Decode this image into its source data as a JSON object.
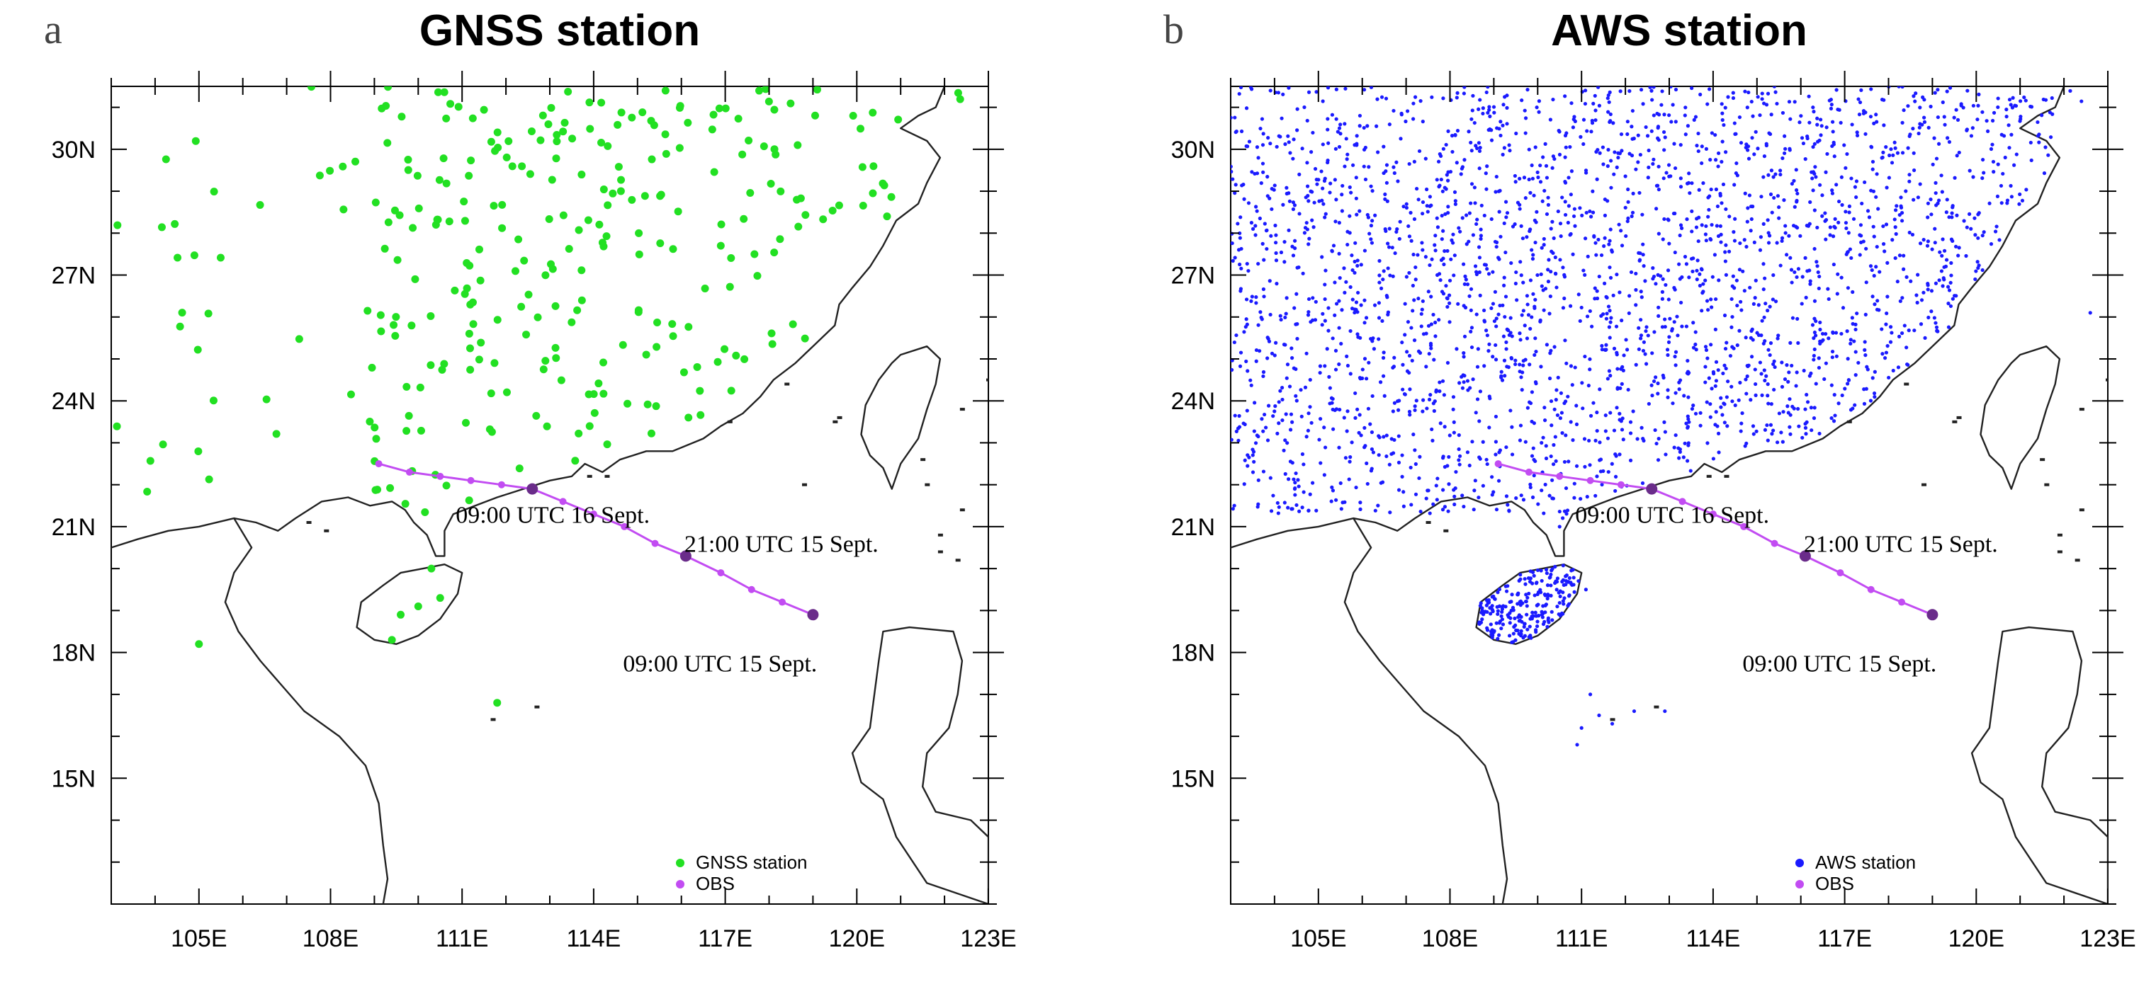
{
  "panels": [
    {
      "letter": "a",
      "title": "GNSS station",
      "station_color": "#22e022",
      "station_kind": "GNSS",
      "legend": {
        "station_label": "GNSS station",
        "obs_label": "OBS",
        "position": "bottom-right"
      }
    },
    {
      "letter": "b",
      "title": "AWS station",
      "station_color": "#1a1aff",
      "station_kind": "AWS",
      "legend": {
        "station_label": "AWS station",
        "obs_label": "OBS",
        "position": "bottom-right"
      }
    }
  ],
  "axes": {
    "lon_range": [
      103,
      123
    ],
    "lat_range": [
      12,
      31.5
    ],
    "x_ticks": [
      "105E",
      "108E",
      "111E",
      "114E",
      "117E",
      "120E",
      "123E"
    ],
    "x_tick_values": [
      105,
      108,
      111,
      114,
      117,
      120,
      123
    ],
    "y_ticks": [
      "15N",
      "18N",
      "21N",
      "24N",
      "27N",
      "30N"
    ],
    "y_tick_values": [
      15,
      18,
      21,
      24,
      27,
      30
    ]
  },
  "colors": {
    "obs_track": "#c24cf2",
    "obs_key_point": "#6a2c8a",
    "coastline": "#222222"
  },
  "track": {
    "points": [
      [
        119.0,
        18.9
      ],
      [
        118.3,
        19.2
      ],
      [
        117.6,
        19.5
      ],
      [
        116.9,
        19.9
      ],
      [
        116.1,
        20.3
      ],
      [
        115.4,
        20.6
      ],
      [
        114.7,
        21.0
      ],
      [
        114.0,
        21.3
      ],
      [
        113.3,
        21.6
      ],
      [
        112.6,
        21.9
      ],
      [
        111.9,
        22.0
      ],
      [
        111.2,
        22.1
      ],
      [
        110.5,
        22.2
      ],
      [
        109.8,
        22.3
      ],
      [
        109.1,
        22.5
      ]
    ],
    "key_points": [
      {
        "lon": 119.0,
        "lat": 18.9,
        "label": "09:00 UTC 15 Sept."
      },
      {
        "lon": 116.1,
        "lat": 20.3,
        "label": "21:00 UTC 15 Sept."
      },
      {
        "lon": 112.6,
        "lat": 21.9,
        "label": "09:00 UTC 16 Sept."
      }
    ]
  }
}
